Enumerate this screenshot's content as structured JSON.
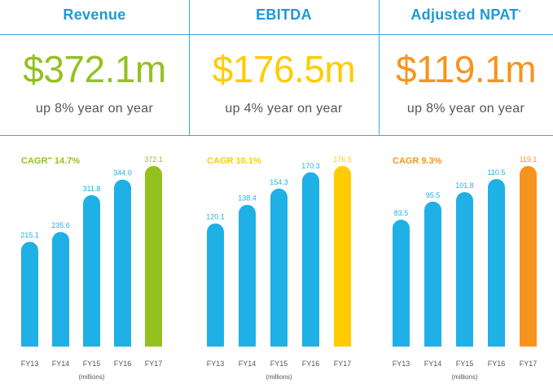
{
  "colors": {
    "blue": "#1fb0e6",
    "green": "#94c11f",
    "yellow": "#ffcc00",
    "orange": "#f7941d",
    "title": "#1c9ad6",
    "divider": "#3ba7dc"
  },
  "panels": [
    {
      "title": "Revenue",
      "title_mark": "",
      "value": "$372.1m",
      "subtitle": "up 8% year on year",
      "cagr": "CAGR",
      "cagr_mark": "**",
      "cagr_value": " 14.7%",
      "units": "(millions)",
      "accent": "#94c11f"
    },
    {
      "title": "EBITDA",
      "title_mark": "",
      "value": "$176.5m",
      "subtitle": "up 4% year on year",
      "cagr": "CAGR",
      "cagr_mark": "",
      "cagr_value": " 10.1%",
      "units": "(millions)",
      "accent": "#ffcc00"
    },
    {
      "title": "Adjusted NPAT",
      "title_mark": "*",
      "value": "$119.1m",
      "subtitle": "up 8% year on year",
      "cagr": "CAGR",
      "cagr_mark": "",
      "cagr_value": " 9.3%",
      "units": "(millions)",
      "accent": "#f7941d"
    }
  ],
  "chart_data": [
    {
      "type": "bar",
      "categories": [
        "FY13",
        "FY14",
        "FY15",
        "FY16",
        "FY17"
      ],
      "values": [
        215.1,
        235.6,
        311.8,
        344.0,
        372.1
      ],
      "value_labels": [
        "215.1",
        "235.6",
        "311.8",
        "344.0",
        "372.1"
      ],
      "title": "Revenue",
      "ylabel": "(millions)",
      "ylim": [
        0,
        372.1
      ]
    },
    {
      "type": "bar",
      "categories": [
        "FY13",
        "FY14",
        "FY15",
        "FY16",
        "FY17"
      ],
      "values": [
        120.1,
        138.4,
        154.3,
        170.3,
        176.5
      ],
      "value_labels": [
        "120.1",
        "138.4",
        "154.3",
        "170.3",
        "176.5"
      ],
      "title": "EBITDA",
      "ylabel": "(millions)",
      "ylim": [
        0,
        176.5
      ]
    },
    {
      "type": "bar",
      "categories": [
        "FY13",
        "FY14",
        "FY15",
        "FY16",
        "FY17"
      ],
      "values": [
        83.5,
        95.5,
        101.8,
        110.5,
        119.1
      ],
      "value_labels": [
        "83.5",
        "95.5",
        "101.8",
        "110.5",
        "119.1"
      ],
      "title": "Adjusted NPAT",
      "ylabel": "(millions)",
      "ylim": [
        0,
        119.1
      ]
    }
  ]
}
